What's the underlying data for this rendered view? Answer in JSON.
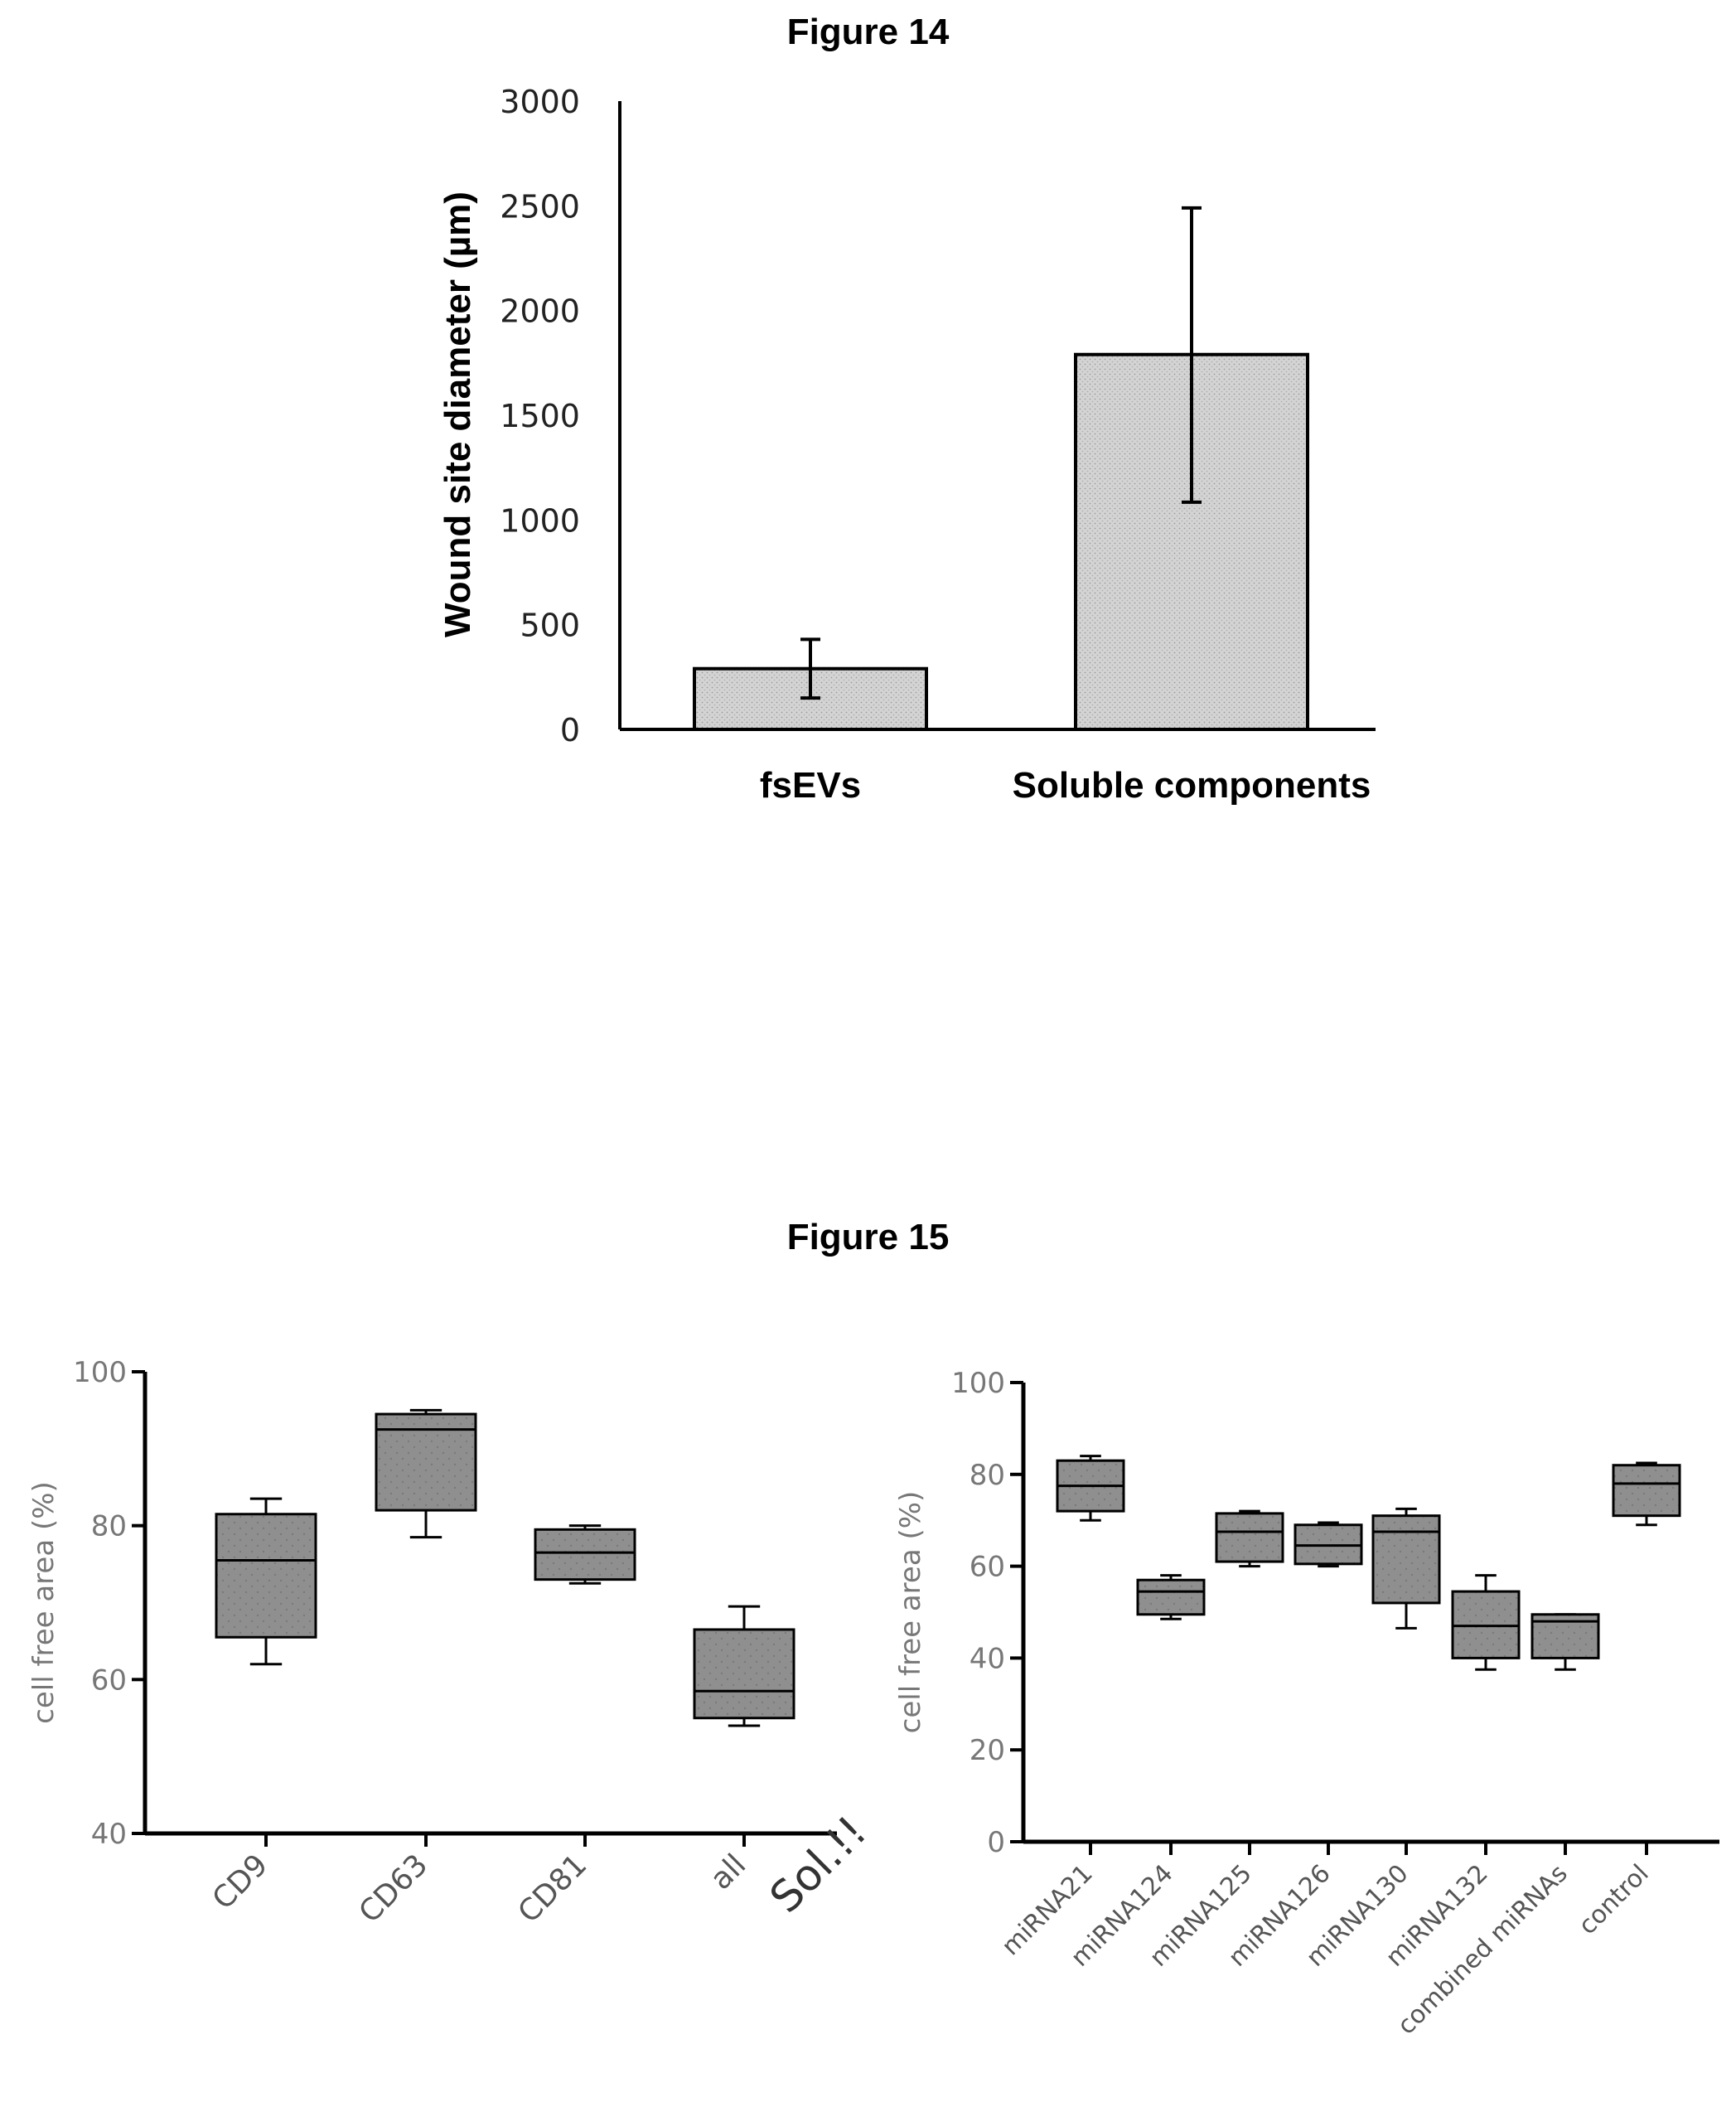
{
  "figure14": {
    "title": "Figure 14"
  },
  "figure15": {
    "title": "Figure 15"
  },
  "chart_data": [
    {
      "type": "bar",
      "title": "Figure 14",
      "xlabel": "",
      "ylabel": "Wound site diameter (µm)",
      "categories": [
        "fsEVs",
        "Soluble components"
      ],
      "values": [
        290,
        1790
      ],
      "error": [
        [
          150,
          430
        ],
        [
          1085,
          2490
        ]
      ],
      "ylim": [
        0,
        3000
      ],
      "yticks": [
        0,
        500,
        1000,
        1500,
        2000,
        2500,
        3000
      ],
      "bar_color": "#d4d4d4"
    },
    {
      "type": "box",
      "xlabel": "",
      "ylabel": "cell free area (%)",
      "categories": [
        "CD9",
        "CD63",
        "CD81",
        "all"
      ],
      "extra_label": "Sol.!!",
      "ylim": [
        40,
        100
      ],
      "yticks": [
        40,
        60,
        80,
        100
      ],
      "boxes": [
        {
          "min": 62,
          "q1": 65.5,
          "median": 75.5,
          "q3": 81.5,
          "max": 83.5
        },
        {
          "min": 78.5,
          "q1": 82,
          "median": 92.5,
          "q3": 94.5,
          "max": 95
        },
        {
          "min": 72.5,
          "q1": 73,
          "median": 76.5,
          "q3": 79.5,
          "max": 80
        },
        {
          "min": 54,
          "q1": 55,
          "median": 58.5,
          "q3": 66.5,
          "max": 69.5
        }
      ],
      "box_color": "#8f8f8f"
    },
    {
      "type": "box",
      "xlabel": "",
      "ylabel": "cell free area (%)",
      "categories": [
        "miRNA21",
        "miRNA124",
        "miRNA125",
        "miRNA126",
        "miRNA130",
        "miRNA132",
        "combined miRNAs",
        "control"
      ],
      "ylim": [
        0,
        100
      ],
      "yticks": [
        0,
        20,
        40,
        60,
        80,
        100
      ],
      "boxes": [
        {
          "min": 70,
          "q1": 72,
          "median": 77.5,
          "q3": 83,
          "max": 84
        },
        {
          "min": 48.5,
          "q1": 49.5,
          "median": 54.5,
          "q3": 57,
          "max": 58
        },
        {
          "min": 60,
          "q1": 61,
          "median": 67.5,
          "q3": 71.5,
          "max": 72
        },
        {
          "min": 60,
          "q1": 60.5,
          "median": 64.5,
          "q3": 69,
          "max": 69.5
        },
        {
          "min": 46.5,
          "q1": 52,
          "median": 67.5,
          "q3": 71,
          "max": 72.5
        },
        {
          "min": 37.5,
          "q1": 40,
          "median": 47,
          "q3": 54.5,
          "max": 58
        },
        {
          "min": 37.5,
          "q1": 40,
          "median": 48,
          "q3": 49.5,
          "max": 49.5
        },
        {
          "min": 69,
          "q1": 71,
          "median": 78,
          "q3": 82,
          "max": 82.5
        }
      ],
      "box_color": "#8f8f8f"
    }
  ]
}
